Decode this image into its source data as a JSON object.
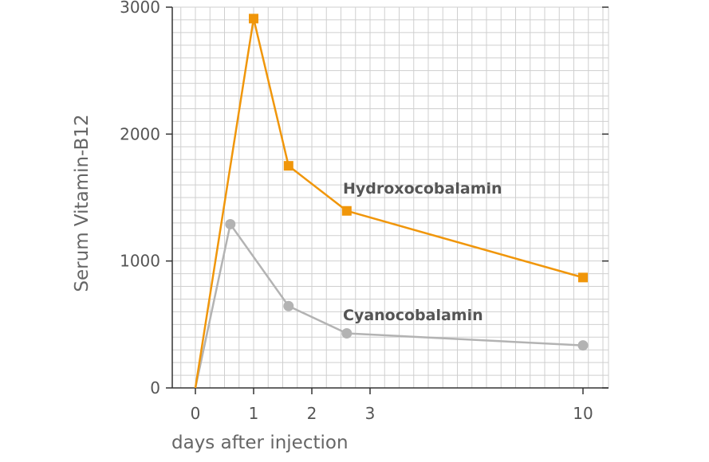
{
  "chart_data": {
    "type": "line",
    "xlabel": "days after injection",
    "ylabel": "Serum Vitamin-B12",
    "ylim": [
      0,
      3000
    ],
    "x_ticks": [
      {
        "value": 0,
        "label": "0"
      },
      {
        "value": 1,
        "label": "1"
      },
      {
        "value": 2,
        "label": "2"
      },
      {
        "value": 3,
        "label": "3"
      },
      {
        "value": 10,
        "label": "10"
      }
    ],
    "y_ticks": [
      {
        "value": 0,
        "label": "0"
      },
      {
        "value": 1000,
        "label": "1000"
      },
      {
        "value": 2000,
        "label": "2000"
      },
      {
        "value": 3000,
        "label": "3000"
      }
    ],
    "grid": true,
    "series": [
      {
        "name": "Hydroxocobalamin",
        "color": "#f0960a",
        "marker": "square",
        "points": [
          {
            "x": 0,
            "y": 0
          },
          {
            "x": 1,
            "y": 2910
          },
          {
            "x": 1.6,
            "y": 1750
          },
          {
            "x": 2.6,
            "y": 1395
          },
          {
            "x": 10,
            "y": 870
          }
        ]
      },
      {
        "name": "Cyanocobalamin",
        "color": "#b3b3b3",
        "marker": "circle",
        "points": [
          {
            "x": 0,
            "y": 0
          },
          {
            "x": 0.6,
            "y": 1290
          },
          {
            "x": 1.6,
            "y": 645
          },
          {
            "x": 2.6,
            "y": 430
          },
          {
            "x": 10,
            "y": 335
          }
        ]
      }
    ]
  }
}
